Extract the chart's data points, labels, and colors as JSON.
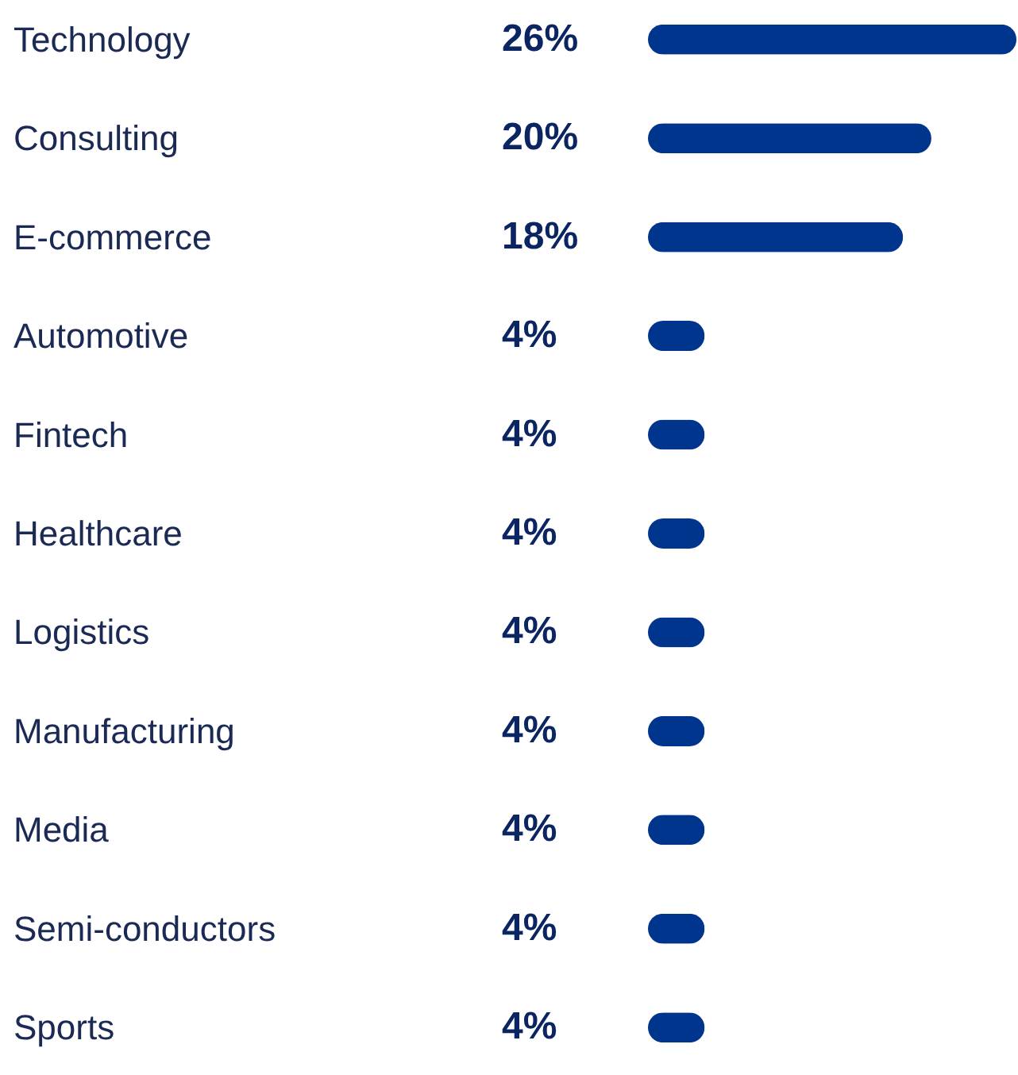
{
  "chart_data": {
    "type": "bar",
    "orientation": "horizontal",
    "categories": [
      "Technology",
      "Consulting",
      "E-commerce",
      "Automotive",
      "Fintech",
      "Healthcare",
      "Logistics",
      "Manufacturing",
      "Media",
      "Semi-conductors",
      "Sports"
    ],
    "values": [
      26,
      20,
      18,
      4,
      4,
      4,
      4,
      4,
      4,
      4,
      4
    ],
    "value_labels": [
      "26%",
      "20%",
      "18%",
      "4%",
      "4%",
      "4%",
      "4%",
      "4%",
      "4%",
      "4%",
      "4%"
    ],
    "color": "#00358e"
  }
}
